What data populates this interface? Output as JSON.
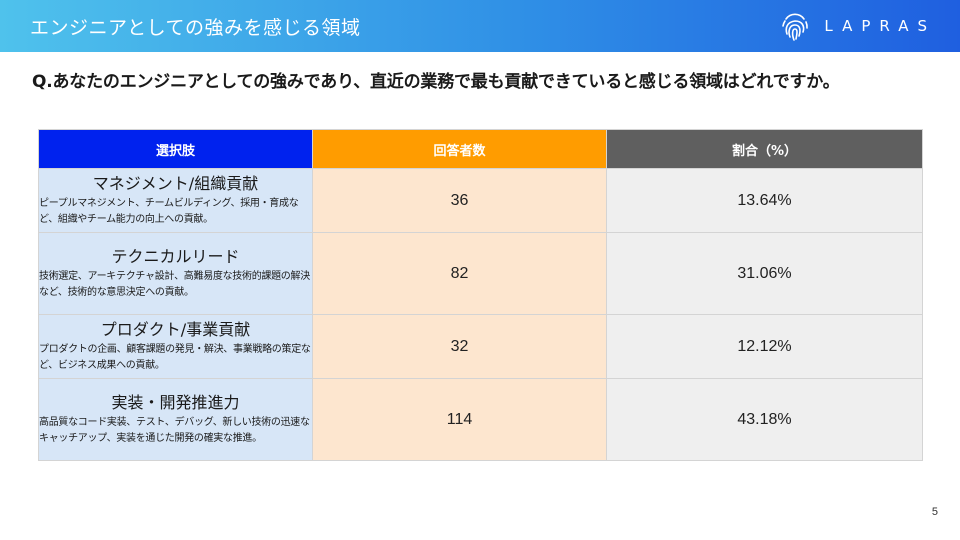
{
  "header": {
    "title": "エンジニアとしての強みを感じる領域",
    "logo_text": "LAPRAS",
    "logo_icon": "fingerprint-icon"
  },
  "question": "Q.あなたのエンジニアとしての強みであり、直近の業務で最も貢献できていると感じる領域はどれですか。",
  "table": {
    "headers": [
      "選択肢",
      "回答者数",
      "割合（%）"
    ],
    "rows": [
      {
        "title": "マネジメント/組織貢献",
        "description": "ピープルマネジメント、チームビルディング、採用・育成など、組織やチーム能力の向上への貢献。",
        "count": "36",
        "percent": "13.64%"
      },
      {
        "title": "テクニカルリード",
        "description": "技術選定、アーキテクチャ設計、高難易度な技術的課題の解決など、技術的な意思決定への貢献。",
        "count": "82",
        "percent": "31.06%"
      },
      {
        "title": "プロダクト/事業貢献",
        "description": "プロダクトの企画、顧客課題の発見・解決、事業戦略の策定など、ビジネス成果への貢献。",
        "count": "32",
        "percent": "12.12%"
      },
      {
        "title": "実装・開発推進力",
        "description": "高品質なコード実装、テスト、デバッグ、新しい技術の迅速なキャッチアップ、実装を通じた開発の確実な推進。",
        "count": "114",
        "percent": "43.18%"
      }
    ]
  },
  "colors": {
    "header_option": "#0022ee",
    "header_count": "#ff9c00",
    "header_percent": "#5f5f5f",
    "cell_option": "#d7e6f7",
    "cell_count": "#fde6cf",
    "cell_percent": "#efefef"
  },
  "page_number": "5"
}
